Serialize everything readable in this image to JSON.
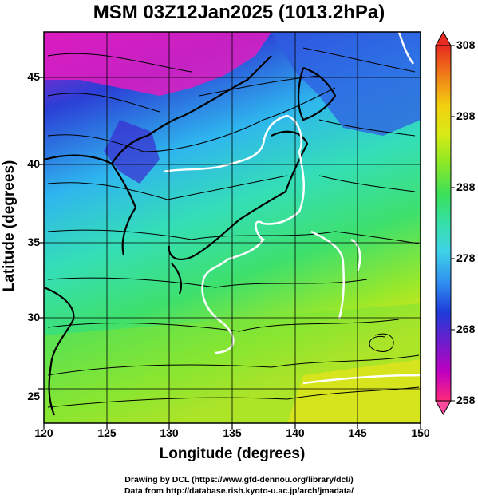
{
  "title": "MSM 03Z12Jan2025 (1013.2hPa)",
  "credits": {
    "line1": "Drawing by DCL (https://www.gfd-dennou.org/library/dcl/)",
    "line2": "Data from http://database.rish.kyoto-u.ac.jp/arch/jmadata/"
  },
  "map": {
    "xlabel": "Longitude (degrees)",
    "ylabel": "Latitude  (degrees)",
    "x_range": [
      120,
      150
    ],
    "y_range": [
      22.5,
      47.5
    ],
    "x_ticks": [
      "120",
      "125",
      "130",
      "135",
      "140",
      "145",
      "150"
    ],
    "y_ticks": [
      "25",
      "30",
      "35",
      "40",
      "45"
    ],
    "grid": true,
    "field": "temperature",
    "vectors": "wind streamlines",
    "contour_color": "#ffffff"
  },
  "colorbar": {
    "range": [
      258,
      308
    ],
    "ticks": [
      "308",
      "298",
      "288",
      "278",
      "268",
      "258"
    ],
    "colors": [
      "#ff2a7a",
      "#c000c0",
      "#6a1ecc",
      "#1e3cd8",
      "#2f8cf0",
      "#3fd2e8",
      "#35e0a8",
      "#3ae05a",
      "#8ce826",
      "#d8ea16",
      "#f2d010",
      "#f07a18",
      "#e82a20"
    ]
  }
}
